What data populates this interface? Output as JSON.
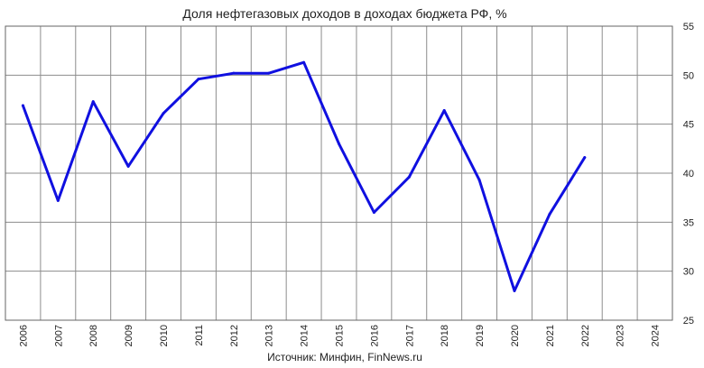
{
  "chart_data": {
    "type": "line",
    "title": "Доля нефтегазовых доходов в доходах бюджета РФ, %",
    "source": "Источник: Минфин, FinNews.ru",
    "xlabel": "",
    "ylabel": "",
    "categories": [
      "2006",
      "2007",
      "2008",
      "2009",
      "2010",
      "2011",
      "2012",
      "2013",
      "2014",
      "2015",
      "2016",
      "2017",
      "2018",
      "2019",
      "2020",
      "2021",
      "2022",
      "2023",
      "2024"
    ],
    "series": [
      {
        "values": [
          46.9,
          37.2,
          47.3,
          40.7,
          46.1,
          49.6,
          50.2,
          50.2,
          51.3,
          43.0,
          36.0,
          39.6,
          46.4,
          39.3,
          28.0,
          35.8,
          41.6,
          null,
          null
        ]
      }
    ],
    "ylim": [
      25,
      55
    ],
    "yticks": [
      25,
      30,
      35,
      40,
      45,
      50,
      55
    ],
    "yaxis_position": "right",
    "grid": true,
    "line_color": "#1010e0"
  }
}
